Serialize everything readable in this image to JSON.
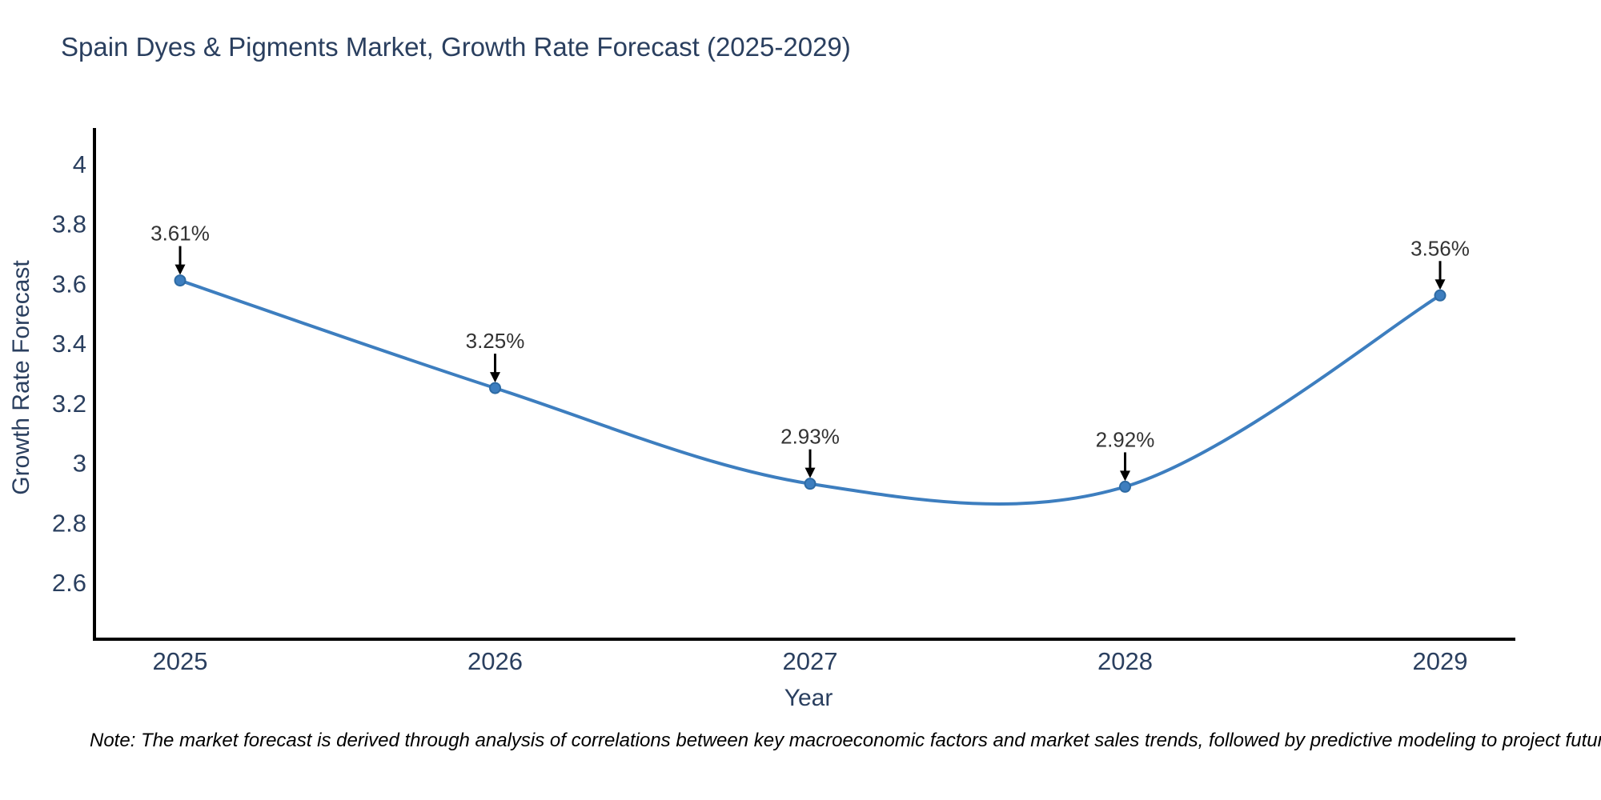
{
  "chart_data": {
    "type": "line",
    "title": "Spain Dyes & Pigments Market, Growth Rate Forecast (2025-2029)",
    "xlabel": "Year",
    "ylabel": "Growth Rate Forecast",
    "categories": [
      "2025",
      "2026",
      "2027",
      "2028",
      "2029"
    ],
    "series": [
      {
        "name": "Growth Rate Forecast",
        "values": [
          3.61,
          3.25,
          2.93,
          2.92,
          3.56
        ]
      }
    ],
    "point_labels": [
      "3.61%",
      "3.25%",
      "2.93%",
      "2.92%",
      "3.56%"
    ],
    "y_ticks": [
      2.6,
      2.8,
      3,
      3.2,
      3.4,
      3.6,
      3.8,
      4
    ],
    "y_tick_labels": [
      "2.6",
      "2.8",
      "3",
      "3.2",
      "3.4",
      "3.6",
      "3.8",
      "4"
    ],
    "ylim": [
      2.41,
      4.12
    ],
    "grid": false,
    "legend_position": "none",
    "line_shape": "spline",
    "colors": {
      "line": "#3d7ebf",
      "marker": "#3d7ebf",
      "marker_edge": "#2d6aa3",
      "axis": "#000000",
      "tick_text": "#2a3f5f",
      "title_text": "#2a3f5f",
      "annotation_text": "#333333",
      "arrow": "#000000"
    }
  },
  "note": {
    "text": "Note: The market forecast is derived through analysis of correlations between key macroeconomic factors and market sales trends, followed by predictive modeling to project future sales"
  }
}
